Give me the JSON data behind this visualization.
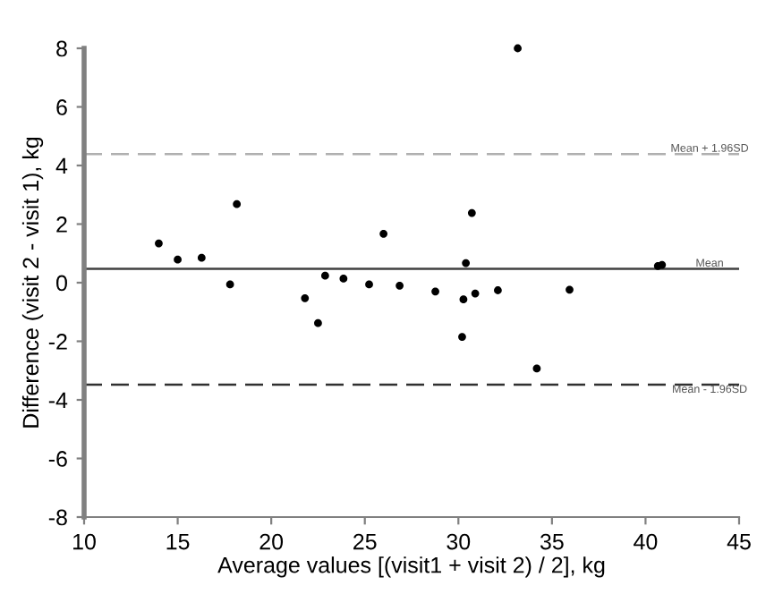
{
  "chart_data": {
    "type": "scatter",
    "xlabel": "Average values [(visit1 + visit 2) / 2], kg",
    "ylabel": "Difference (visit 2 - visit 1), kg",
    "x": [
      13.99,
      15.0,
      16.28,
      17.8,
      18.16,
      21.8,
      22.5,
      22.88,
      23.86,
      25.23,
      26.0,
      26.86,
      28.77,
      30.2,
      30.27,
      30.4,
      30.72,
      30.9,
      32.11,
      33.17,
      34.19,
      35.94,
      40.66,
      40.88
    ],
    "series": [
      {
        "color": "#000000",
        "values": [
          1.34,
          0.79,
          0.85,
          -0.06,
          2.68,
          -0.53,
          -1.38,
          0.24,
          0.14,
          -0.06,
          1.67,
          -0.1,
          -0.3,
          -1.85,
          -0.57,
          0.67,
          2.38,
          -0.37,
          -0.26,
          8.0,
          -2.93,
          -0.24,
          0.57,
          0.61
        ]
      }
    ],
    "marker": "circle",
    "xlim": [
      10,
      45
    ],
    "xticks": [
      10,
      15,
      20,
      25,
      30,
      35,
      40,
      45
    ],
    "ylim": [
      -8,
      8
    ],
    "yticks": [
      -8,
      -6,
      -4,
      -2,
      0,
      2,
      4,
      6,
      8
    ],
    "ref_lines": [
      {
        "axis": "y",
        "value": 4.39,
        "label": "Mean + 1.96SD",
        "color": "#b0b0b0",
        "line_style": "dashed"
      },
      {
        "axis": "y",
        "value": 0.47,
        "label": "Mean",
        "color": "#404040",
        "line_style": "solid"
      },
      {
        "axis": "y",
        "value": -3.48,
        "label": "Mean - 1.96SD",
        "color": "#303030",
        "line_style": "dashed"
      }
    ],
    "grid": false,
    "legend": false
  }
}
